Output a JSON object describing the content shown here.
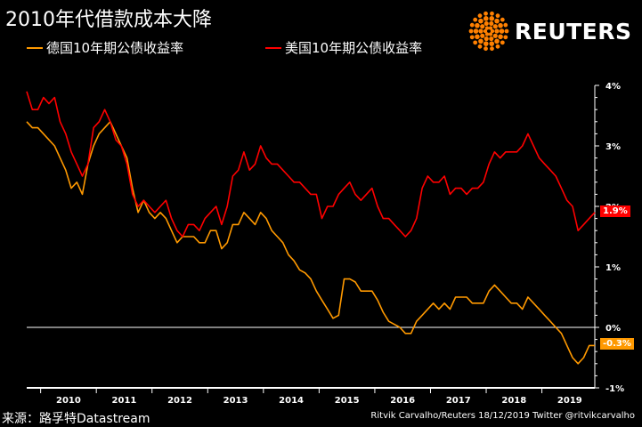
{
  "title": "2010年代借款成本大降",
  "source": "来源：路孚特Datastream",
  "credit": "Ritvik Carvalho/Reuters 18/12/2019 Twitter @ritvikcarvalho",
  "logo": {
    "text": "REUTERS",
    "icon": "reuters-dot-logo",
    "color": "#ff8000"
  },
  "colors": {
    "germany": "#ff9900",
    "us": "#ff0000",
    "background": "#000000",
    "axis": "#ffffff"
  },
  "legend": [
    {
      "label": "德国10年期公债收益率",
      "color": "#ff9900"
    },
    {
      "label": "美国10年期公债收益率",
      "color": "#ff0000"
    }
  ],
  "chart_data": {
    "type": "line",
    "xlim": [
      2009.75,
      2019.95
    ],
    "ylim": [
      -1,
      4
    ],
    "x_ticks": [
      2010,
      2011,
      2012,
      2013,
      2014,
      2015,
      2016,
      2017,
      2018,
      2019
    ],
    "y_ticks": [
      {
        "value": 4,
        "label": "4%"
      },
      {
        "value": 3,
        "label": "3%"
      },
      {
        "value": 2,
        "label": "2%"
      },
      {
        "value": 1,
        "label": "1%"
      },
      {
        "value": 0,
        "label": "0%"
      },
      {
        "value": -1,
        "label": "-1%"
      }
    ],
    "zero_line": true,
    "grid": false,
    "legend_position": "top-left",
    "series": [
      {
        "name": "德国10年期公债收益率",
        "color": "#ff9900",
        "end_label": "-0.3%",
        "x": [
          2009.75,
          2009.85,
          2009.95,
          2010.05,
          2010.15,
          2010.25,
          2010.35,
          2010.45,
          2010.55,
          2010.65,
          2010.75,
          2010.85,
          2010.95,
          2011.05,
          2011.15,
          2011.25,
          2011.35,
          2011.45,
          2011.55,
          2011.65,
          2011.75,
          2011.85,
          2011.95,
          2012.05,
          2012.15,
          2012.25,
          2012.35,
          2012.45,
          2012.55,
          2012.65,
          2012.75,
          2012.85,
          2012.95,
          2013.05,
          2013.15,
          2013.25,
          2013.35,
          2013.45,
          2013.55,
          2013.65,
          2013.75,
          2013.85,
          2013.95,
          2014.05,
          2014.15,
          2014.25,
          2014.35,
          2014.45,
          2014.55,
          2014.65,
          2014.75,
          2014.85,
          2014.95,
          2015.05,
          2015.15,
          2015.25,
          2015.35,
          2015.45,
          2015.55,
          2015.65,
          2015.75,
          2015.85,
          2015.95,
          2016.05,
          2016.15,
          2016.25,
          2016.35,
          2016.45,
          2016.55,
          2016.65,
          2016.75,
          2016.85,
          2016.95,
          2017.05,
          2017.15,
          2017.25,
          2017.35,
          2017.45,
          2017.55,
          2017.65,
          2017.75,
          2017.85,
          2017.95,
          2018.05,
          2018.15,
          2018.25,
          2018.35,
          2018.45,
          2018.55,
          2018.65,
          2018.75,
          2018.85,
          2018.95,
          2019.05,
          2019.15,
          2019.25,
          2019.35,
          2019.45,
          2019.55,
          2019.65,
          2019.75,
          2019.85,
          2019.95
        ],
        "values": [
          3.4,
          3.3,
          3.3,
          3.2,
          3.1,
          3.0,
          2.8,
          2.6,
          2.3,
          2.4,
          2.2,
          2.7,
          3.0,
          3.2,
          3.3,
          3.4,
          3.2,
          3.0,
          2.8,
          2.3,
          1.9,
          2.1,
          1.9,
          1.8,
          1.9,
          1.8,
          1.6,
          1.4,
          1.5,
          1.5,
          1.5,
          1.4,
          1.4,
          1.6,
          1.6,
          1.3,
          1.4,
          1.7,
          1.7,
          1.9,
          1.8,
          1.7,
          1.9,
          1.8,
          1.6,
          1.5,
          1.4,
          1.2,
          1.1,
          0.95,
          0.9,
          0.8,
          0.6,
          0.45,
          0.3,
          0.15,
          0.2,
          0.8,
          0.8,
          0.75,
          0.6,
          0.6,
          0.6,
          0.45,
          0.25,
          0.1,
          0.05,
          0.0,
          -0.1,
          -0.1,
          0.1,
          0.2,
          0.3,
          0.4,
          0.3,
          0.4,
          0.3,
          0.5,
          0.5,
          0.5,
          0.4,
          0.4,
          0.4,
          0.6,
          0.7,
          0.6,
          0.5,
          0.4,
          0.4,
          0.3,
          0.5,
          0.4,
          0.3,
          0.2,
          0.1,
          0.0,
          -0.1,
          -0.3,
          -0.5,
          -0.6,
          -0.5,
          -0.3,
          -0.3
        ]
      },
      {
        "name": "美国10年期公债收益率",
        "color": "#ff0000",
        "end_label": "1.9%",
        "x": [
          2009.75,
          2009.85,
          2009.95,
          2010.05,
          2010.15,
          2010.25,
          2010.35,
          2010.45,
          2010.55,
          2010.65,
          2010.75,
          2010.85,
          2010.95,
          2011.05,
          2011.15,
          2011.25,
          2011.35,
          2011.45,
          2011.55,
          2011.65,
          2011.75,
          2011.85,
          2011.95,
          2012.05,
          2012.15,
          2012.25,
          2012.35,
          2012.45,
          2012.55,
          2012.65,
          2012.75,
          2012.85,
          2012.95,
          2013.05,
          2013.15,
          2013.25,
          2013.35,
          2013.45,
          2013.55,
          2013.65,
          2013.75,
          2013.85,
          2013.95,
          2014.05,
          2014.15,
          2014.25,
          2014.35,
          2014.45,
          2014.55,
          2014.65,
          2014.75,
          2014.85,
          2014.95,
          2015.05,
          2015.15,
          2015.25,
          2015.35,
          2015.45,
          2015.55,
          2015.65,
          2015.75,
          2015.85,
          2015.95,
          2016.05,
          2016.15,
          2016.25,
          2016.35,
          2016.45,
          2016.55,
          2016.65,
          2016.75,
          2016.85,
          2016.95,
          2017.05,
          2017.15,
          2017.25,
          2017.35,
          2017.45,
          2017.55,
          2017.65,
          2017.75,
          2017.85,
          2017.95,
          2018.05,
          2018.15,
          2018.25,
          2018.35,
          2018.45,
          2018.55,
          2018.65,
          2018.75,
          2018.85,
          2018.95,
          2019.05,
          2019.15,
          2019.25,
          2019.35,
          2019.45,
          2019.55,
          2019.65,
          2019.75,
          2019.85,
          2019.95
        ],
        "values": [
          3.9,
          3.6,
          3.6,
          3.8,
          3.7,
          3.8,
          3.4,
          3.2,
          2.9,
          2.7,
          2.5,
          2.7,
          3.3,
          3.4,
          3.6,
          3.4,
          3.1,
          3.0,
          2.7,
          2.2,
          2.0,
          2.1,
          2.0,
          1.9,
          2.0,
          2.1,
          1.8,
          1.6,
          1.5,
          1.7,
          1.7,
          1.6,
          1.8,
          1.9,
          2.0,
          1.7,
          2.0,
          2.5,
          2.6,
          2.9,
          2.6,
          2.7,
          3.0,
          2.8,
          2.7,
          2.7,
          2.6,
          2.5,
          2.4,
          2.4,
          2.3,
          2.2,
          2.2,
          1.8,
          2.0,
          2.0,
          2.2,
          2.3,
          2.4,
          2.2,
          2.1,
          2.2,
          2.3,
          2.0,
          1.8,
          1.8,
          1.7,
          1.6,
          1.5,
          1.6,
          1.8,
          2.3,
          2.5,
          2.4,
          2.4,
          2.5,
          2.2,
          2.3,
          2.3,
          2.2,
          2.3,
          2.3,
          2.4,
          2.7,
          2.9,
          2.8,
          2.9,
          2.9,
          2.9,
          3.0,
          3.2,
          3.0,
          2.8,
          2.7,
          2.6,
          2.5,
          2.3,
          2.1,
          2.0,
          1.6,
          1.7,
          1.8,
          1.9
        ]
      }
    ]
  }
}
